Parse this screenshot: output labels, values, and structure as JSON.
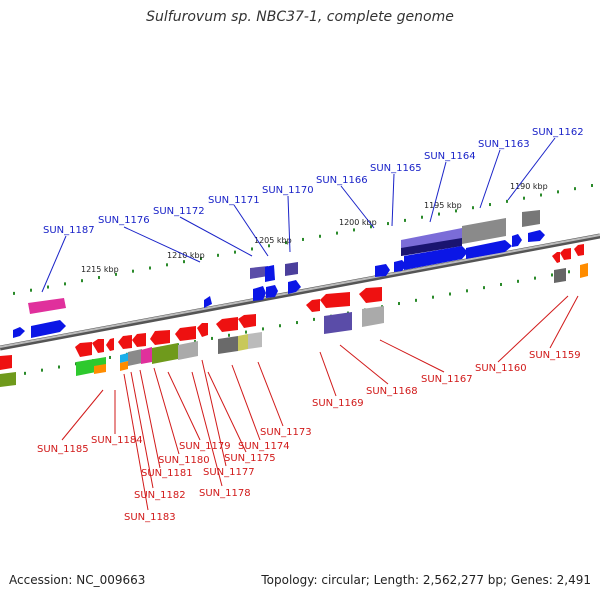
{
  "title": "Sulfurovum sp. NBC37-1, complete genome",
  "footer": {
    "accession": "Accession: NC_009663",
    "summary": "Topology: circular; Length: 2,562,277 bp; Genes: 2,491"
  },
  "kbp_ticks": [
    "1215 kbp",
    "1210 kbp",
    "1205 kbp",
    "1200 kbp",
    "1195 kbp",
    "1190 kbp"
  ],
  "genes_forward": [
    "SUN_1187",
    "SUN_1176",
    "SUN_1172",
    "SUN_1171",
    "SUN_1170",
    "SUN_1166",
    "SUN_1165",
    "SUN_1164",
    "SUN_1163",
    "SUN_1162"
  ],
  "genes_reverse": [
    "SUN_1185",
    "SUN_1184",
    "SUN_1183",
    "SUN_1182",
    "SUN_1181",
    "SUN_1180",
    "SUN_1179",
    "SUN_1178",
    "SUN_1177",
    "SUN_1175",
    "SUN_1174",
    "SUN_1173",
    "SUN_1169",
    "SUN_1168",
    "SUN_1167",
    "SUN_1160",
    "SUN_1159"
  ],
  "colors": {
    "forward_label": "#1a23c8",
    "reverse_label": "#d11a1a",
    "tick": "#2a8a2a",
    "backbone": "#8a8a8a"
  }
}
